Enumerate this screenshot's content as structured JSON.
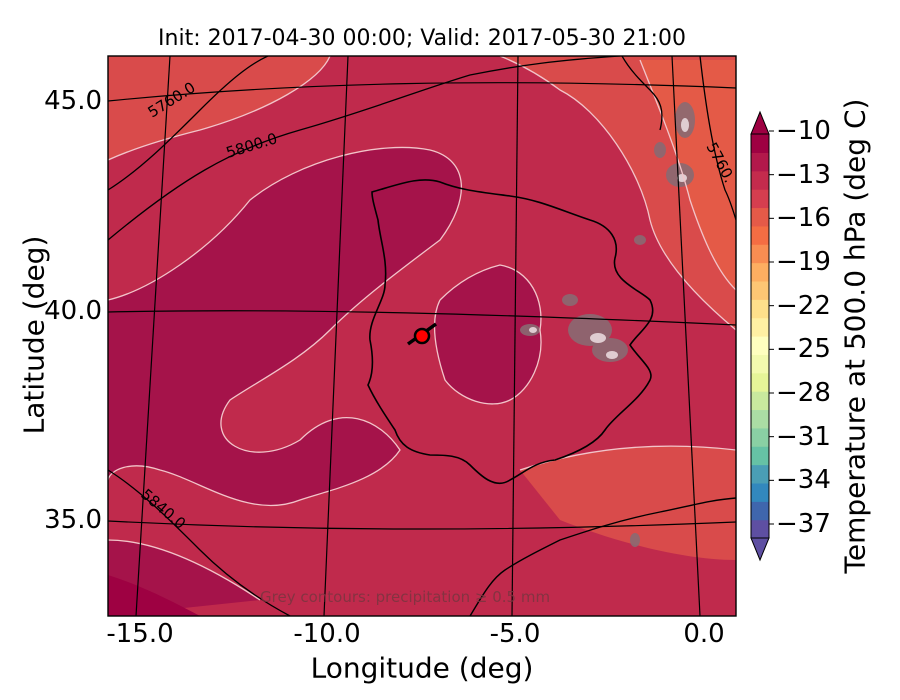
{
  "title": "Init: 2017-04-30 00:00; Valid: 2017-05-30 21:00",
  "xlabel": "Longitude (deg)",
  "ylabel": "Latitude (deg)",
  "x_ticks": [
    "-15.0",
    "-10.0",
    "-5.0",
    "0.0"
  ],
  "y_ticks": [
    "45.0",
    "40.0",
    "35.0"
  ],
  "colorbar": {
    "label": "Temperature at 500.0 hPa (deg C)",
    "ticks": [
      "−10",
      "−13",
      "−16",
      "−19",
      "−22",
      "−25",
      "−28",
      "−31",
      "−34",
      "−37"
    ],
    "colors": [
      "#5e4fa2",
      "#3f66ad",
      "#3288bd",
      "#4a9eb5",
      "#66c2a5",
      "#8ad0a4",
      "#abdda4",
      "#c9e99e",
      "#e6f598",
      "#f3faae",
      "#ffffbf",
      "#fff0a3",
      "#fee08b",
      "#fdc674",
      "#fdae61",
      "#f88d52",
      "#f46d43",
      "#e55a48",
      "#d53e4f",
      "#c42b4d",
      "#b2184b",
      "#9e0142"
    ]
  },
  "height_contour_labels": [
    "5760.0",
    "5800.0",
    "5760.",
    "5840.0"
  ],
  "annotation": "Grey contours: precipitation ≥ 0.5 mm",
  "colors": {
    "field_main": "#c02a4c",
    "field_warm": "#a5134a",
    "field_cool": "#d94b4b",
    "field_edge": "#e45a47",
    "marker": "#ff0000"
  },
  "marker": {
    "lon": -7.7,
    "lat": 39.3
  }
}
